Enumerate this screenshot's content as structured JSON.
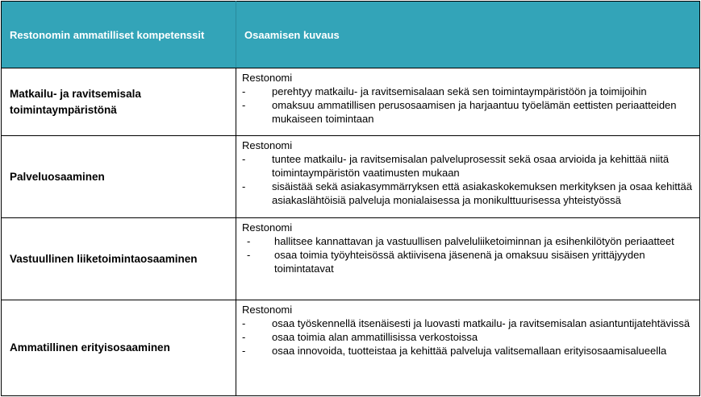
{
  "header": {
    "col1": "Restonomin  ammatilliset kompetenssit",
    "col2": "Osaamisen kuvaus"
  },
  "rows": [
    {
      "name": "Matkailu- ja ravitsemisala toimintaympäristönä",
      "intro": "Restonomi",
      "items": [
        "perehtyy matkailu- ja ravitsemisalaan sekä sen toimintaympäristöön ja toimijoihin",
        "omaksuu ammatillisen perusosaamisen ja harjaantuu työelämän eettisten periaatteiden mukaiseen toimintaan"
      ]
    },
    {
      "name": "Palveluosaaminen",
      "intro": "Restonomi",
      "items": [
        "tuntee matkailu- ja ravitsemisalan palveluprosessit sekä osaa arvioida ja kehittää niitä toimintaympäristön vaatimusten mukaan",
        "sisäistää sekä asiakasymmärryksen että asiakaskokemuksen merkityksen ja osaa kehittää asiakaslähtöisiä palveluja monialaisessa ja monikulttuurisessa yhteistyössä"
      ]
    },
    {
      "name": "Vastuullinen liiketoimintaosaaminen",
      "intro": "Restonomi",
      "items": [
        "hallitsee kannattavan ja vastuullisen palveluliiketoiminnan ja esihenkilötyön periaatteet",
        "osaa toimia työyhteisössä aktiivisena jäsenenä ja omaksuu sisäisen yrittäjyyden toimintatavat"
      ]
    },
    {
      "name": "Ammatillinen erityisosaaminen",
      "intro": "Restonomi",
      "items": [
        "osaa työskennellä itsenäisesti ja luovasti matkailu- ja ravitsemisalan asiantuntijatehtävissä",
        "osaa toimia alan ammatillisissa verkostoissa",
        "osaa innovoida, tuotteistaa ja kehittää palveluja valitsemallaan erityisosaamisalueella"
      ]
    }
  ],
  "bullet": "-",
  "colors": {
    "header_bg": "#33A4B8",
    "header_text": "#FFFFFF",
    "border": "#000000"
  }
}
